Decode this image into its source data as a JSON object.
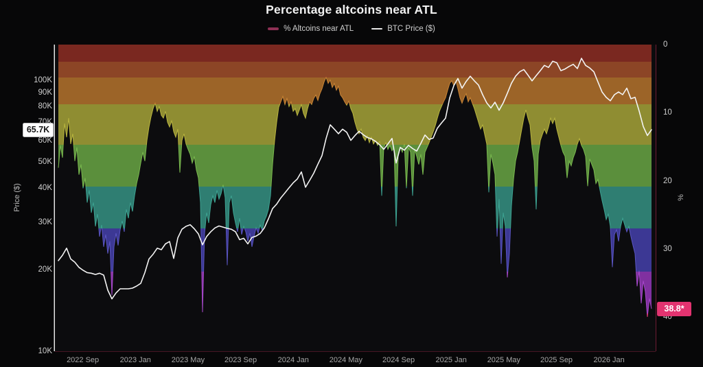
{
  "title": "Percentage altcoins near ATL",
  "legend": {
    "altcoins": {
      "label": "% Altcoins near ATL",
      "swatch_color": "#8e3054"
    },
    "btc": {
      "label": "BTC Price ($)",
      "swatch_color": "#e8e8e8"
    }
  },
  "badges": {
    "current_btc_price": "65.7K",
    "current_pct": "38.8*"
  },
  "axes": {
    "left": {
      "title": "Price ($)",
      "scale": "log",
      "ticks": [
        100,
        90,
        80,
        70,
        60,
        50,
        40,
        30,
        20,
        10
      ],
      "tick_suffix": "K",
      "unit": "K USD"
    },
    "right": {
      "title": "%",
      "scale": "linear-inverted",
      "ticks": [
        0,
        10,
        20,
        30,
        40
      ],
      "range": [
        0,
        45
      ]
    },
    "x": {
      "ticks": [
        {
          "label": "2022 Sep",
          "t": 2022.6667
        },
        {
          "label": "2023 Jan",
          "t": 2023.0
        },
        {
          "label": "2023 May",
          "t": 2023.3333
        },
        {
          "label": "2023 Sep",
          "t": 2023.6667
        },
        {
          "label": "2024 Jan",
          "t": 2024.0
        },
        {
          "label": "2024 May",
          "t": 2024.3333
        },
        {
          "label": "2024 Sep",
          "t": 2024.6667
        },
        {
          "label": "2025 Jan",
          "t": 2025.0
        },
        {
          "label": "2025 May",
          "t": 2025.3333
        },
        {
          "label": "2025 Sep",
          "t": 2025.6667
        },
        {
          "label": "2026 Jan",
          "t": 2026.0
        }
      ],
      "t_min": 2022.49,
      "t_max": 2026.295
    }
  },
  "colors": {
    "background": "#070708",
    "plot_background": "#0c0c0e",
    "btc_line": "#f4f4f4",
    "left_spine": "#e6e6e6",
    "bottom_spine": "#471523",
    "right_spine": "#6e1c33",
    "pct_badge": "#e23370"
  },
  "chart_data": {
    "type": "mixed",
    "title": "Percentage altcoins near ATL",
    "rainbow_bands": {
      "note": "horizontal color bands filling the % area from 0% (top) downward",
      "pct_boundaries": [
        0,
        2.52,
        4.84,
        8.77,
        14.71,
        20.86,
        27.0,
        33.35,
        39.5,
        45.04
      ],
      "fill_colors": [
        "#7a2820",
        "#8c4526",
        "#9c6428",
        "#8f8d32",
        "#5b8f3c",
        "#2f7e72",
        "#3c3894",
        "#8030a0",
        "#c12a5a"
      ],
      "edge_colors": [
        "#a03a2c",
        "#b85c32",
        "#c98434",
        "#b8b43e",
        "#79b84e",
        "#3da392",
        "#5a55c2",
        "#a648c9",
        "#e8397a"
      ]
    },
    "series": [
      {
        "name": "% Altcoins near ATL",
        "type": "area-inverted",
        "axis": "right",
        "unit": "%",
        "t_start": 2022.5117,
        "t_step": 0.013046,
        "last_value": 38.8,
        "values": [
          18.1,
          14.8,
          16.6,
          11.6,
          13.6,
          10.8,
          14.6,
          13.1,
          17.1,
          15.1,
          19.1,
          17.6,
          21.1,
          19.6,
          23.2,
          21.4,
          24.7,
          23.2,
          26.7,
          24.9,
          28.2,
          26.5,
          29.7,
          27.9,
          30.7,
          28.9,
          36.8,
          29.7,
          27.7,
          29.5,
          27.2,
          25.9,
          27.5,
          24.2,
          25.5,
          23.2,
          24.5,
          22.2,
          20.4,
          19.1,
          17.4,
          15.8,
          17.1,
          14.1,
          12.1,
          10.6,
          9.4,
          8.6,
          9.8,
          9.1,
          10.4,
          10.8,
          9.8,
          11.4,
          12.1,
          11.2,
          12.8,
          13.6,
          12.4,
          18.8,
          14.1,
          13.1,
          14.6,
          15.4,
          16.1,
          17.4,
          16.4,
          18.4,
          19.6,
          23.2,
          39.3,
          27.7,
          24.7,
          26.2,
          23.5,
          22.2,
          23.2,
          21.4,
          22.7,
          21.9,
          20.6,
          22.5,
          32.4,
          23.2,
          22.2,
          24.7,
          26.2,
          27.5,
          25.5,
          27.9,
          26.7,
          27.5,
          28.9,
          27.7,
          29.7,
          28.2,
          26.9,
          27.7,
          26.5,
          27.3,
          25.9,
          25.2,
          24.2,
          22.2,
          17.6,
          14.1,
          11.4,
          9.2,
          8.4,
          7.6,
          8.8,
          7.9,
          9.1,
          8.4,
          9.8,
          9.4,
          10.4,
          9.6,
          8.8,
          10.1,
          10.8,
          9.4,
          8.4,
          8.8,
          7.9,
          7.4,
          8.2,
          7.2,
          6.5,
          5.5,
          4.8,
          5.7,
          5.2,
          6.3,
          5.7,
          6.7,
          6.1,
          7.4,
          7.8,
          8.4,
          8.9,
          8.3,
          9.4,
          10.1,
          11.4,
          12.4,
          13.1,
          12.4,
          13.6,
          14.1,
          13.4,
          14.4,
          13.6,
          14.6,
          14.1,
          14.8,
          14.2,
          22.2,
          15.1,
          14.4,
          15.4,
          14.8,
          15.6,
          15.1,
          26.7,
          16.4,
          15.1,
          15.8,
          14.6,
          21.1,
          15.1,
          15.8,
          22.2,
          15.4,
          16.4,
          17.6,
          16.1,
          19.1,
          15.8,
          15.1,
          14.4,
          13.6,
          12.8,
          11.9,
          10.8,
          9.8,
          9.1,
          8.4,
          7.8,
          6.7,
          5.7,
          5.3,
          6.0,
          5.3,
          6.5,
          7.8,
          8.6,
          7.8,
          7.2,
          8.4,
          7.8,
          8.6,
          9.4,
          10.4,
          11.4,
          12.4,
          11.8,
          13.2,
          14.6,
          21.7,
          16.1,
          17.4,
          19.1,
          28.2,
          22.7,
          32.2,
          24.7,
          26.7,
          34.2,
          30.7,
          23.7,
          19.8,
          17.1,
          15.8,
          14.1,
          12.4,
          10.8,
          9.6,
          10.8,
          11.8,
          15.1,
          17.1,
          24.2,
          16.1,
          14.1,
          13.2,
          12.4,
          13.1,
          12.1,
          10.8,
          11.6,
          10.8,
          12.4,
          13.6,
          14.8,
          15.8,
          16.4,
          19.6,
          17.1,
          17.8,
          16.6,
          15.8,
          14.6,
          13.8,
          14.8,
          15.4,
          16.4,
          20.8,
          16.8,
          17.6,
          18.4,
          20.4,
          19.8,
          21.4,
          22.9,
          24.2,
          25.7,
          24.9,
          26.7,
          32.7,
          27.9,
          27.2,
          28.9,
          26.7,
          25.5,
          26.5,
          27.5,
          26.7,
          28.2,
          29.5,
          30.7,
          35.5,
          33.2,
          38.0,
          34.7,
          36.3,
          40.0,
          37.3,
          38.8
        ]
      },
      {
        "name": "BTC Price ($)",
        "type": "line",
        "axis": "left",
        "unit": "K USD",
        "t_start": 2022.5117,
        "t_step": 0.026091,
        "last_value": 65.7,
        "values": [
          21.6,
          22.6,
          24.0,
          21.9,
          21.3,
          20.4,
          19.9,
          19.5,
          19.4,
          19.2,
          19.4,
          19.1,
          16.8,
          15.6,
          16.4,
          17.0,
          17.0,
          17.0,
          17.1,
          17.4,
          17.8,
          19.5,
          21.9,
          22.8,
          24.0,
          23.7,
          24.9,
          25.4,
          22.0,
          26.2,
          28.2,
          28.9,
          29.3,
          28.3,
          27.1,
          24.7,
          26.5,
          27.6,
          28.5,
          29.0,
          28.7,
          28.4,
          28.2,
          27.6,
          25.8,
          26.1,
          24.9,
          26.3,
          26.6,
          27.2,
          28.5,
          30.8,
          33.6,
          34.9,
          36.8,
          38.4,
          40.1,
          41.8,
          43.2,
          45.9,
          40.3,
          42.7,
          45.4,
          49.0,
          52.7,
          61.0,
          68.5,
          66.0,
          63.5,
          66.0,
          64.3,
          60.0,
          62.5,
          64.8,
          63.0,
          61.5,
          60.8,
          59.5,
          57.8,
          55.6,
          58.2,
          61.0,
          49.5,
          56.5,
          55.2,
          57.5,
          56.0,
          54.8,
          58.5,
          62.8,
          60.5,
          61.2,
          66.5,
          69.5,
          72.5,
          86.0,
          95.5,
          101.5,
          93.5,
          99.0,
          103.5,
          99.5,
          96.0,
          88.5,
          82.5,
          79.0,
          83.0,
          77.5,
          82.5,
          89.5,
          97.5,
          103.5,
          107.5,
          109.5,
          104.5,
          99.5,
          104.0,
          108.5,
          113.5,
          111.5,
          117.5,
          116.0,
          108.5,
          110.0,
          112.5,
          114.5,
          110.5,
          120.5,
          113.5,
          111.0,
          107.5,
          98.5,
          90.5,
          86.5,
          84.0,
          88.5,
          90.5,
          88.5,
          93.5,
          85.5,
          86.5,
          77.0,
          67.5,
          62.5,
          65.7
        ]
      }
    ]
  }
}
